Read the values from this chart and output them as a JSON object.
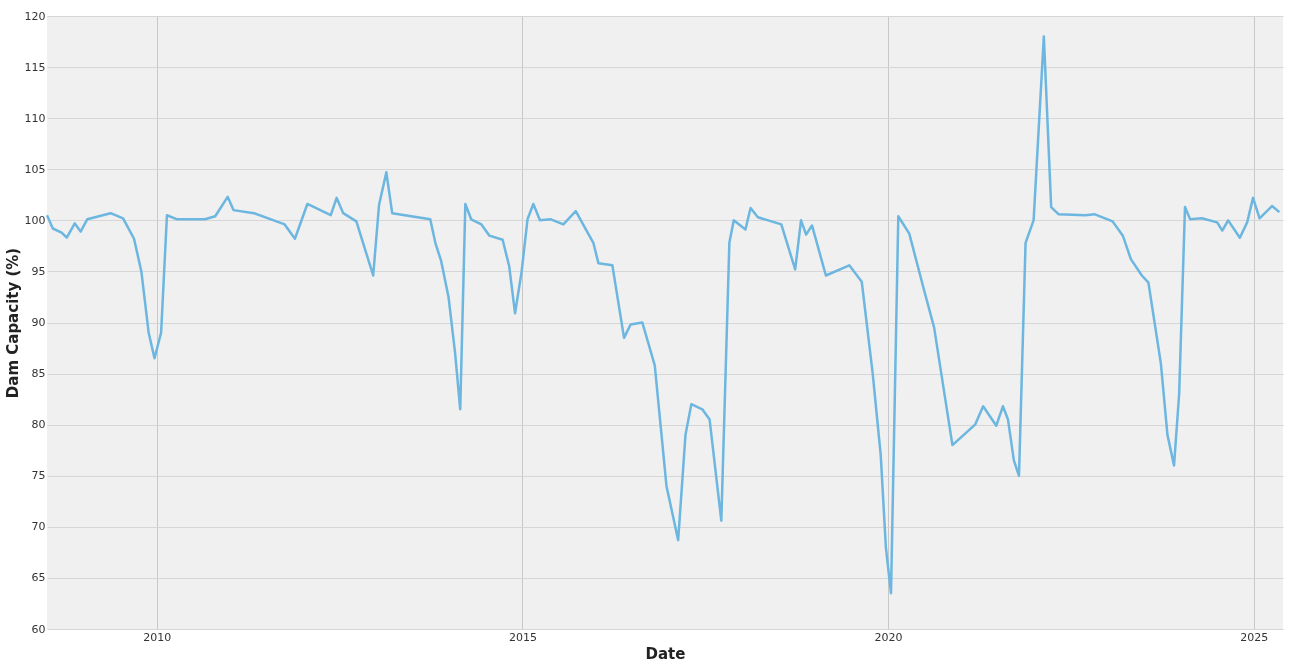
{
  "chart_data": {
    "type": "line",
    "xlabel": "Date",
    "ylabel": "Dam Capacity (%)",
    "x": [
      2008.5,
      2008.58,
      2008.7,
      2008.77,
      2008.88,
      2008.96,
      2009.05,
      2009.37,
      2009.54,
      2009.69,
      2009.79,
      2009.89,
      2009.97,
      2010.06,
      2010.14,
      2010.28,
      2010.66,
      2010.8,
      2010.97,
      2011.05,
      2011.33,
      2011.75,
      2011.89,
      2012.06,
      2012.38,
      2012.46,
      2012.55,
      2012.73,
      2012.96,
      2013.04,
      2013.14,
      2013.22,
      2013.74,
      2013.81,
      2013.89,
      2013.99,
      2014.08,
      2014.15,
      2014.22,
      2014.3,
      2014.44,
      2014.55,
      2014.73,
      2014.82,
      2014.9,
      2014.99,
      2015.07,
      2015.15,
      2015.24,
      2015.39,
      2015.56,
      2015.73,
      2015.97,
      2016.04,
      2016.23,
      2016.39,
      2016.48,
      2016.64,
      2016.81,
      2016.97,
      2017.13,
      2017.23,
      2017.31,
      2017.46,
      2017.56,
      2017.72,
      2017.83,
      2017.89,
      2018.05,
      2018.12,
      2018.22,
      2018.54,
      2018.73,
      2018.81,
      2018.88,
      2018.96,
      2019.15,
      2019.47,
      2019.64,
      2019.79,
      2019.9,
      2019.97,
      2020.04,
      2020.14,
      2020.29,
      2020.48,
      2020.63,
      2020.88,
      2021.19,
      2021.3,
      2021.48,
      2021.57,
      2021.64,
      2021.72,
      2021.79,
      2021.88,
      2021.99,
      2022.13,
      2022.23,
      2022.33,
      2022.7,
      2022.82,
      2023.07,
      2023.21,
      2023.32,
      2023.47,
      2023.56,
      2023.73,
      2023.82,
      2023.91,
      2023.98,
      2024.06,
      2024.13,
      2024.29,
      2024.5,
      2024.57,
      2024.65,
      2024.81,
      2024.91,
      2024.99,
      2025.08,
      2025.25,
      2025.35
    ],
    "series": [
      {
        "color": "#6cb6e0",
        "values": [
          100.5,
          99.2,
          98.8,
          98.3,
          99.7,
          98.9,
          100.1,
          100.7,
          100.2,
          98.2,
          95,
          89,
          86.5,
          89,
          100.5,
          100.1,
          100.1,
          100.4,
          102.3,
          101,
          100.7,
          99.6,
          98.2,
          101.6,
          100.5,
          102.2,
          100.7,
          99.9,
          94.6,
          101.5,
          104.7,
          100.7,
          100.1,
          97.8,
          96,
          92.5,
          87,
          81.5,
          101.6,
          100.1,
          99.6,
          98.5,
          98.1,
          95.5,
          90.9,
          95,
          100.1,
          101.6,
          100,
          100.1,
          99.6,
          100.9,
          97.8,
          95.8,
          95.6,
          88.5,
          89.8,
          90,
          85.8,
          74,
          68.7,
          79,
          82,
          81.5,
          80.5,
          70.6,
          97.8,
          100,
          99.1,
          101.2,
          100.3,
          99.6,
          95.2,
          100,
          98.6,
          99.5,
          94.6,
          95.6,
          94,
          85,
          77,
          68,
          63.5,
          100.4,
          98.7,
          93.5,
          89.5,
          78,
          80,
          81.8,
          79.9,
          81.8,
          80.5,
          76.5,
          75,
          97.8,
          100,
          118,
          101.3,
          100.6,
          100.5,
          100.6,
          99.9,
          98.5,
          96.2,
          94.6,
          93.9,
          86,
          79,
          76,
          83,
          101.3,
          100.1,
          100.2,
          99.8,
          99,
          100,
          98.3,
          99.8,
          102.2,
          100.2,
          101.4,
          100.8
        ]
      }
    ],
    "xlim": [
      2008.5,
      2025.4
    ],
    "xticks": [
      2010,
      2015,
      2020,
      2025
    ],
    "ylim": [
      60,
      120
    ],
    "yticks": [
      60,
      65,
      70,
      75,
      80,
      85,
      90,
      95,
      100,
      105,
      110,
      115,
      120
    ],
    "grid": true,
    "marker": "none",
    "line_style": "solid"
  }
}
